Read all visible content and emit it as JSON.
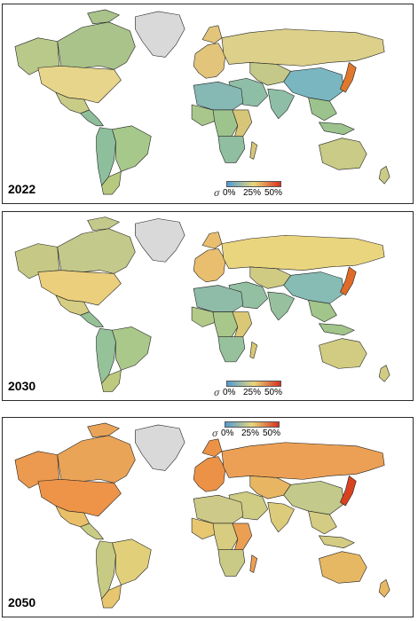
{
  "colors": {
    "ocean": "#ffffff",
    "border": "#222222",
    "greenland": "#d9d9d9",
    "scale_low": "#4f9bd6",
    "scale_mid": "#e8d77a",
    "scale_high": "#d7311f"
  },
  "legend": {
    "symbol": "σ",
    "ticks": [
      "0%",
      "25%",
      "50%"
    ]
  },
  "panels": [
    {
      "year": "2022",
      "regions": {
        "canada": "#a9c38a",
        "alaska": "#b8c98a",
        "usa": "#e6d58a",
        "mexico": "#c9cc86",
        "central_america": "#8fbf9a",
        "brazil": "#a6c88a",
        "andes": "#8ebf9c",
        "southern_cone": "#b7c97f",
        "europe": "#e2c47a",
        "russia": "#dcd08a",
        "middle_east": "#8fbea6",
        "central_asia": "#c4c98a",
        "china": "#79b6c0",
        "india": "#8ebfa6",
        "se_asia": "#9cc38e",
        "japan": "#e0782e",
        "north_africa": "#86b8b4",
        "west_africa": "#a9c78c",
        "central_africa": "#9ec48e",
        "east_africa": "#d7c678",
        "southern_africa": "#8fbea0",
        "australia": "#c9cb86"
      }
    },
    {
      "year": "2030",
      "regions": {
        "canada": "#c3c98a",
        "alaska": "#c6c985",
        "usa": "#ebcf7d",
        "mexico": "#d4cd83",
        "central_america": "#96c197",
        "brazil": "#aac889",
        "andes": "#95c299",
        "southern_cone": "#bcc97f",
        "europe": "#e9be6f",
        "russia": "#ead57f",
        "middle_east": "#93c0a2",
        "central_asia": "#cfcb83",
        "china": "#86bcb4",
        "india": "#97c19e",
        "se_asia": "#a2c58b",
        "japan": "#e06a28",
        "north_africa": "#8fbba9",
        "west_africa": "#b2c98a",
        "central_africa": "#a8c78a",
        "east_africa": "#dbc876",
        "southern_africa": "#96c19c",
        "australia": "#d1cc82"
      }
    },
    {
      "year": "2050",
      "regions": {
        "canada": "#eaa458",
        "alaska": "#eb9a50",
        "usa": "#ee9448",
        "mexico": "#e9bf69",
        "central_america": "#c9cc84",
        "brazil": "#e2cf7a",
        "andes": "#c6ca83",
        "southern_cone": "#e7c66f",
        "europe": "#ec9246",
        "russia": "#eca055",
        "middle_east": "#cfcc84",
        "central_asia": "#e8b663",
        "china": "#c2c98a",
        "india": "#dccb7b",
        "se_asia": "#d4cc82",
        "japan": "#d9421f",
        "north_africa": "#cdc988",
        "west_africa": "#e6c76f",
        "central_africa": "#d7cc7f",
        "east_africa": "#ea9f52",
        "southern_africa": "#c8ca86",
        "australia": "#e7b863"
      }
    }
  ]
}
